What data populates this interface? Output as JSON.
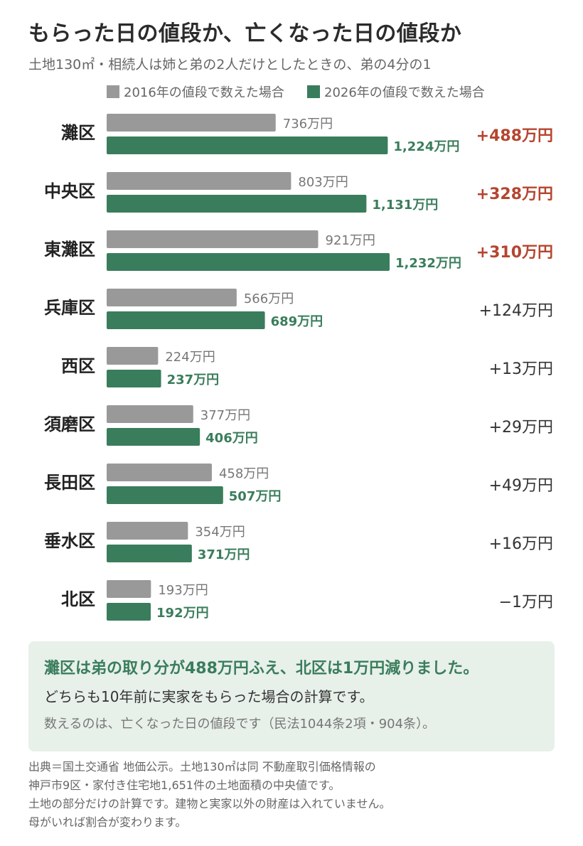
{
  "title": "もらった日の値段か、亡くなった日の値段か",
  "subtitle": "土地130㎡・相続人は姉と弟の2人だけとしたときの、弟の4分の1",
  "colors": {
    "series_2016": "#999999",
    "series_2026": "#3a7d5c",
    "diff_highlight": "#b5452f",
    "diff_normal": "#333333"
  },
  "chart_data": {
    "type": "bar",
    "orientation": "horizontal",
    "categories": [
      "灘区",
      "中央区",
      "東灘区",
      "兵庫区",
      "西区",
      "須磨区",
      "長田区",
      "垂水区",
      "北区"
    ],
    "series": [
      {
        "name": "2016年の値段で数えた場合",
        "values": [
          736,
          803,
          921,
          566,
          224,
          377,
          458,
          354,
          193
        ],
        "labels": [
          "736万円",
          "803万円",
          "921万円",
          "566万円",
          "224万円",
          "377万円",
          "458万円",
          "354万円",
          "193万円"
        ]
      },
      {
        "name": "2026年の値段で数えた場合",
        "values": [
          1224,
          1131,
          1232,
          689,
          237,
          406,
          507,
          371,
          192
        ],
        "labels": [
          "1,224万円",
          "1,131万円",
          "1,232万円",
          "689万円",
          "237万円",
          "406万円",
          "507万円",
          "371万円",
          "192万円"
        ]
      }
    ],
    "differences": [
      "+488万円",
      "+328万円",
      "+310万円",
      "+124万円",
      "+13万円",
      "+29万円",
      "+49万円",
      "+16万円",
      "−1万円"
    ],
    "highlighted": [
      true,
      true,
      true,
      false,
      false,
      false,
      false,
      false,
      false
    ],
    "xlim": [
      0,
      1232
    ],
    "legend_position": "top"
  },
  "note": {
    "headline": "灘区は弟の取り分が488万円ふえ、北区は1万円減りました。",
    "line1": "どちらも10年前に実家をもらった場合の計算です。",
    "line2": "数えるのは、亡くなった日の値段です（民法1044条2項・904条）。"
  },
  "source": [
    "出典＝国土交通省 地価公示。土地130㎡は同 不動産取引価格情報の",
    "神戸市9区・家付き住宅地1,651件の土地面積の中央値です。",
    "土地の部分だけの計算です。建物と実家以外の財産は入れていません。",
    "母がいれば割合が変わります。"
  ]
}
